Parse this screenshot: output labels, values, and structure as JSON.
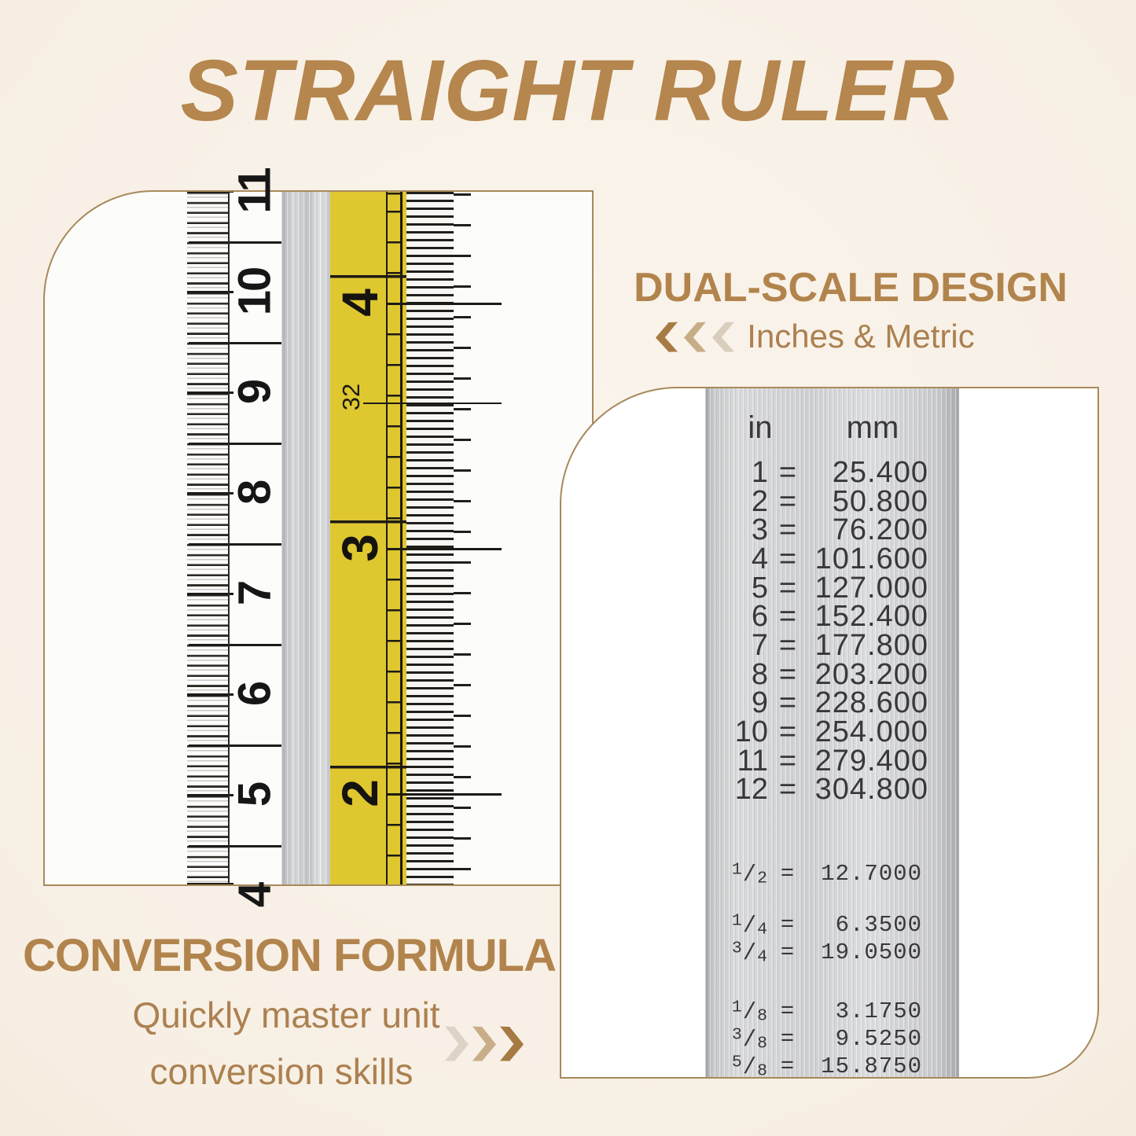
{
  "title": "STRAIGHT RULER",
  "colors": {
    "accent_gold": "#b5864d",
    "border_gold": "#a8895b",
    "ruler_yellow": "#dfc72f",
    "dual_chevron_colors": [
      "#a87b44",
      "#c7ad86",
      "#d9cdbc"
    ],
    "conv_chevron_colors": [
      "#ddd3c6",
      "#c8ae88",
      "#a67a42"
    ]
  },
  "dual_scale": {
    "heading": "DUAL-SCALE DESIGN",
    "subheading": "Inches & Metric",
    "chevron_direction": "left"
  },
  "conversion_promo": {
    "heading": "CONVERSION FORMULA",
    "line1": "Quickly master unit",
    "line2": "conversion skills",
    "chevron_direction": "right"
  },
  "ruler_photo": {
    "cm_numbers": [
      "11",
      "10",
      "9",
      "8",
      "7",
      "6",
      "5",
      "4"
    ],
    "inch_numbers": [
      "4",
      "3",
      "2"
    ],
    "fine_scale_label": "32"
  },
  "conversion_table": {
    "col_in": "in",
    "col_mm": "mm",
    "equals": "=",
    "whole_rows": [
      {
        "in": "1",
        "mm": "25.400"
      },
      {
        "in": "2",
        "mm": "50.800"
      },
      {
        "in": "3",
        "mm": "76.200"
      },
      {
        "in": "4",
        "mm": "101.600"
      },
      {
        "in": "5",
        "mm": "127.000"
      },
      {
        "in": "6",
        "mm": "152.400"
      },
      {
        "in": "7",
        "mm": "177.800"
      },
      {
        "in": "8",
        "mm": "203.200"
      },
      {
        "in": "9",
        "mm": "228.600"
      },
      {
        "in": "10",
        "mm": "254.000"
      },
      {
        "in": "11",
        "mm": "279.400"
      },
      {
        "in": "12",
        "mm": "304.800"
      }
    ],
    "fraction_groups": [
      [
        {
          "in": "1/2",
          "mm": "12.7000"
        }
      ],
      [
        {
          "in": "1/4",
          "mm": "6.3500"
        },
        {
          "in": "3/4",
          "mm": "19.0500"
        }
      ],
      [
        {
          "in": "1/8",
          "mm": "3.1750"
        },
        {
          "in": "3/8",
          "mm": "9.5250"
        },
        {
          "in": "5/8",
          "mm": "15.8750"
        }
      ]
    ]
  }
}
